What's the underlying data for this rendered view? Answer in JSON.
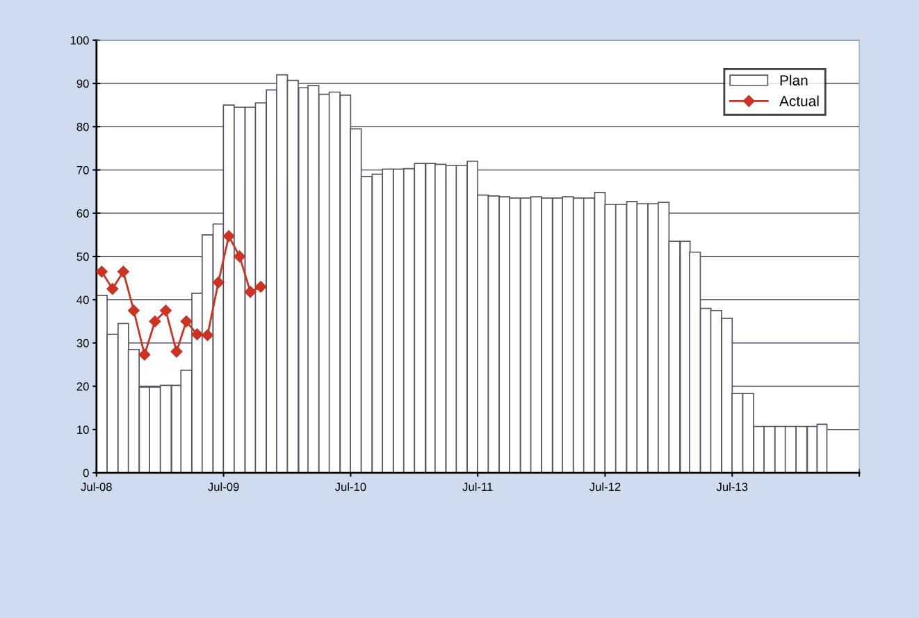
{
  "chart_data": {
    "type": "bar",
    "x": [
      "2008-07-16",
      "2008-08-16",
      "2008-09-16",
      "2008-10-16",
      "2008-11-16",
      "2008-12-16",
      "2009-01-16",
      "2009-02-16",
      "2009-03-16",
      "2009-04-16",
      "2009-05-16",
      "2009-06-16",
      "2009-07-16",
      "2009-08-16",
      "2009-09-16",
      "2009-10-16",
      "2009-11-16",
      "2009-12-16",
      "2010-01-16",
      "2010-02-16",
      "2010-03-16",
      "2010-04-16",
      "2010-05-16",
      "2010-06-16",
      "2010-07-16",
      "2010-08-16",
      "2010-09-16",
      "2010-10-16",
      "2010-11-16",
      "2010-12-16",
      "2011-01-16",
      "2011-02-16",
      "2011-03-16",
      "2011-04-16",
      "2011-05-16",
      "2011-06-16",
      "2011-07-16",
      "2011-08-16",
      "2011-09-16",
      "2011-10-16",
      "2011-11-16",
      "2011-12-16",
      "2012-01-16",
      "2012-02-16",
      "2012-03-16",
      "2012-04-16",
      "2012-05-16",
      "2012-06-16",
      "2012-07-16",
      "2012-08-16",
      "2012-09-16",
      "2012-10-16",
      "2012-11-16",
      "2012-12-16",
      "2013-01-16",
      "2013-02-16",
      "2013-03-16",
      "2013-04-16",
      "2013-05-16",
      "2013-06-16",
      "2013-07-16",
      "2013-08-16",
      "2013-09-16",
      "2013-10-16",
      "2013-11-16",
      "2013-12-16",
      "2014-01-16",
      "2014-02-16",
      "2014-03-16"
    ],
    "series": [
      {
        "name": "Plan",
        "color": "#ffffff",
        "values": [
          41,
          32,
          34.5,
          28.5,
          19.8,
          19.8,
          20.2,
          20.2,
          23.7,
          41.5,
          55,
          57.5,
          85,
          84.5,
          84.5,
          85.5,
          88.5,
          92,
          90.7,
          89,
          89.5,
          87.5,
          88,
          87.3,
          79.5,
          68.5,
          69,
          70.2,
          70.2,
          70.3,
          71.5,
          71.5,
          71.3,
          71,
          71,
          72,
          64.2,
          64,
          63.8,
          63.5,
          63.5,
          63.8,
          63.5,
          63.5,
          63.8,
          63.5,
          63.5,
          64.8,
          62,
          62,
          62.7,
          62.2,
          62.2,
          62.5,
          53.5,
          53.5,
          51,
          38,
          37.5,
          35.7,
          18.3,
          18.3,
          10.7,
          10.7,
          10.7,
          10.7,
          10.7,
          10.7,
          11.2
        ]
      },
      {
        "name": "Actual",
        "type": "line",
        "color": "#cc3322",
        "marker": "diamond",
        "x": [
          "2008-07-16",
          "2008-08-16",
          "2008-09-16",
          "2008-10-16",
          "2008-11-16",
          "2008-12-16",
          "2009-01-16",
          "2009-02-16",
          "2009-03-16",
          "2009-04-16",
          "2009-05-16",
          "2009-06-16",
          "2009-07-16",
          "2009-08-16",
          "2009-09-16",
          "2009-10-16"
        ],
        "values": [
          46.5,
          42.5,
          46.5,
          37.5,
          27.3,
          35,
          37.5,
          28,
          35,
          32,
          31.8,
          44,
          54.7,
          50,
          41.8,
          43
        ]
      }
    ],
    "xlim": [
      "2008-07-01",
      "2014-07-01"
    ],
    "xticks": [
      {
        "value": "2008-07-01",
        "label": "Jul-08"
      },
      {
        "value": "2009-07-01",
        "label": "Jul-09"
      },
      {
        "value": "2010-07-01",
        "label": "Jul-10"
      },
      {
        "value": "2011-07-01",
        "label": "Jul-11"
      },
      {
        "value": "2012-07-01",
        "label": "Jul-12"
      },
      {
        "value": "2013-07-01",
        "label": "Jul-13"
      },
      {
        "value": "2014-07-01",
        "label": null
      }
    ],
    "ylim": [
      0,
      100
    ],
    "yticks": [
      0,
      10,
      20,
      30,
      40,
      50,
      60,
      70,
      80,
      90,
      100
    ],
    "grid": "y",
    "legend": "top right"
  }
}
